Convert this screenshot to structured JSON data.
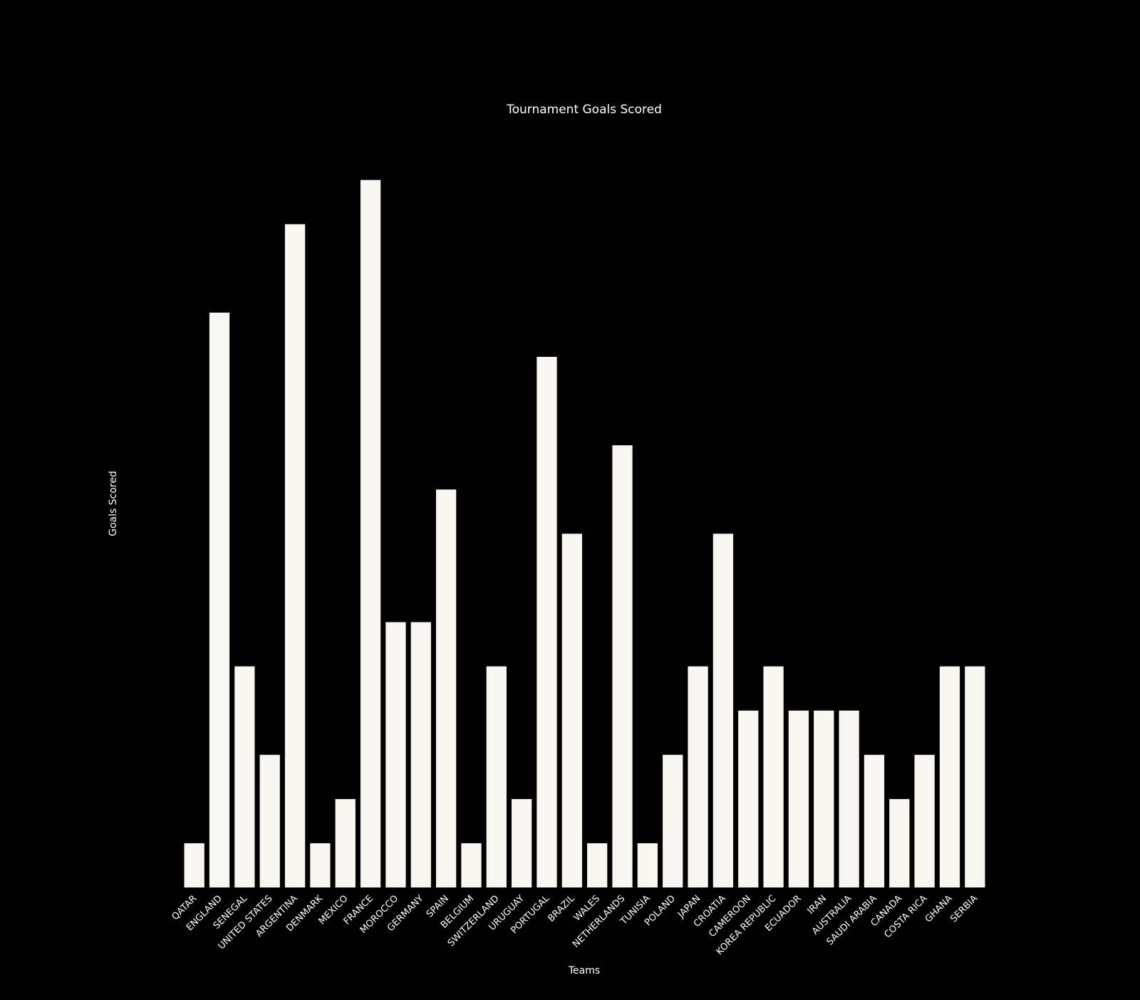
{
  "chart_data": {
    "type": "bar",
    "title": "Tournament Goals Scored",
    "xlabel": "Teams",
    "ylabel": "Goals Scored",
    "categories": [
      "QATAR",
      "ENGLAND",
      "SENEGAL",
      "UNITED STATES",
      "ARGENTINA",
      "DENMARK",
      "MEXICO",
      "FRANCE",
      "MOROCCO",
      "GERMANY",
      "SPAIN",
      "BELGIUM",
      "SWITZERLAND",
      "URUGUAY",
      "PORTUGAL",
      "BRAZIL",
      "WALES",
      "NETHERLANDS",
      "TUNISIA",
      "POLAND",
      "JAPAN",
      "CROATIA",
      "CAMEROON",
      "KOREA REPUBLIC",
      "ECUADOR",
      "IRAN",
      "AUSTRALIA",
      "SAUDI ARABIA",
      "CANADA",
      "COSTA RICA",
      "GHANA",
      "SERBIA"
    ],
    "values": [
      1,
      13,
      5,
      3,
      15,
      1,
      2,
      16,
      6,
      6,
      9,
      1,
      5,
      2,
      12,
      8,
      1,
      10,
      1,
      3,
      5,
      8,
      4,
      5,
      4,
      4,
      4,
      3,
      2,
      3,
      5,
      5
    ],
    "ylim": [
      0,
      16.8
    ],
    "grid": false,
    "colors": {
      "background": "#000000",
      "bar": "#f8f6f0",
      "text": "#ffffff"
    }
  }
}
